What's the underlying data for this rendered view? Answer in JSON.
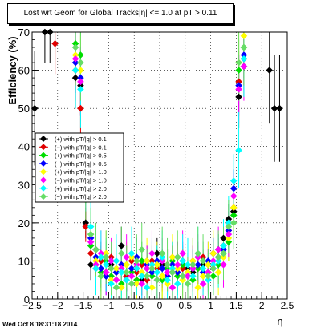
{
  "chart_data": {
    "type": "scatter",
    "title": "Lost wrt Geom for Global Tracks|η| <= 1.0 at pT > 0.11",
    "title_overlap_fragment": "atv",
    "xlabel": "η",
    "ylabel": "Efficiency (%)",
    "xlim": [
      -2.5,
      2.5
    ],
    "ylim": [
      0,
      70
    ],
    "x_ticks": [
      "−2.5",
      "−2",
      "−1.5",
      "−1",
      "−0.5",
      "0",
      "0.5",
      "1",
      "1.5",
      "2",
      "2.5"
    ],
    "y_ticks": [
      "0",
      "10",
      "20",
      "30",
      "40",
      "50",
      "60",
      "70"
    ],
    "grid": true,
    "legend_placement": "left-center",
    "series": [
      {
        "name": "(+) with pT/|q| > 0.1",
        "color": "#000000",
        "x": [
          -2.45,
          -2.25,
          -2.15,
          -1.65,
          -1.55,
          -1.45,
          -1.35,
          -1.25,
          -1.15,
          -1.05,
          -0.95,
          -0.85,
          -0.75,
          -0.65,
          -0.55,
          -0.45,
          -0.35,
          -0.25,
          -0.15,
          -0.05,
          0.05,
          0.15,
          0.25,
          0.35,
          0.45,
          0.55,
          0.65,
          0.75,
          0.85,
          0.95,
          1.05,
          1.15,
          1.25,
          1.35,
          1.45,
          1.55,
          1.65,
          2.15,
          2.25,
          2.35
        ],
        "y": [
          50,
          70,
          70,
          58,
          56,
          20,
          9,
          13,
          11,
          6,
          9,
          7,
          14,
          6,
          11,
          8,
          5,
          10,
          7,
          12,
          9,
          6,
          7,
          11,
          9,
          8,
          7,
          11,
          9,
          7,
          12,
          13,
          16,
          21,
          23,
          53,
          61,
          60,
          50,
          50
        ],
        "err": [
          15,
          8,
          8,
          8,
          8,
          4,
          4,
          4,
          4,
          4,
          4,
          4,
          5,
          4,
          4,
          4,
          4,
          4,
          4,
          4,
          4,
          4,
          4,
          4,
          4,
          4,
          4,
          4,
          4,
          4,
          4,
          4,
          4,
          4,
          4,
          8,
          8,
          14,
          14,
          14
        ]
      },
      {
        "name": "(−) with pT/|q| > 0.1",
        "color": "#e00000",
        "x": [
          -2.05,
          -1.65,
          -1.55,
          -1.45,
          -1.35,
          -1.25,
          -1.15,
          -1.05,
          -0.95,
          -0.85,
          -0.75,
          -0.65,
          -0.55,
          -0.45,
          -0.35,
          -0.25,
          -0.15,
          -0.05,
          0.05,
          0.15,
          0.25,
          0.35,
          0.45,
          0.55,
          0.65,
          0.75,
          0.85,
          0.95,
          1.05,
          1.15,
          1.25,
          1.35,
          1.45,
          1.55,
          1.65
        ],
        "y": [
          67,
          60,
          50,
          19,
          12,
          8,
          10,
          7,
          11,
          5,
          9,
          6,
          10,
          7,
          9,
          5,
          10,
          8,
          6,
          9,
          11,
          7,
          8,
          6,
          10,
          8,
          11,
          9,
          12,
          11,
          14,
          18,
          24,
          57,
          63
        ],
        "err": [
          8,
          8,
          8,
          4,
          4,
          4,
          4,
          4,
          4,
          4,
          4,
          4,
          4,
          4,
          4,
          4,
          4,
          4,
          4,
          4,
          4,
          4,
          4,
          4,
          4,
          4,
          4,
          4,
          4,
          4,
          4,
          4,
          4,
          8,
          8
        ]
      },
      {
        "name": "(+) with pT/|q| > 0.5",
        "color": "#00dd00",
        "x": [
          -1.65,
          -1.55,
          -1.45,
          -1.35,
          -1.25,
          -1.15,
          -1.05,
          -0.95,
          -0.85,
          -0.75,
          -0.65,
          -0.55,
          -0.45,
          -0.35,
          -0.25,
          -0.15,
          -0.05,
          0.05,
          0.15,
          0.25,
          0.35,
          0.45,
          0.55,
          0.65,
          0.75,
          0.85,
          0.95,
          1.05,
          1.15,
          1.25,
          1.35,
          1.45,
          1.55,
          1.65
        ],
        "y": [
          67,
          64,
          33,
          14,
          9,
          7,
          10,
          6,
          8,
          4,
          9,
          7,
          5,
          10,
          8,
          6,
          9,
          5,
          8,
          10,
          6,
          9,
          7,
          5,
          8,
          10,
          7,
          6,
          9,
          12,
          15,
          22,
          60,
          66
        ],
        "err": [
          8,
          8,
          6,
          5,
          5,
          5,
          5,
          5,
          5,
          5,
          5,
          5,
          5,
          5,
          5,
          5,
          5,
          5,
          5,
          5,
          5,
          5,
          5,
          5,
          5,
          5,
          5,
          5,
          5,
          5,
          5,
          5,
          8,
          8
        ]
      },
      {
        "name": "(−) with pT/|q| > 0.5",
        "color": "#0000ff",
        "x": [
          -1.65,
          -1.55,
          -1.45,
          -1.35,
          -1.25,
          -1.15,
          -1.05,
          -0.95,
          -0.85,
          -0.75,
          -0.65,
          -0.55,
          -0.45,
          -0.35,
          -0.25,
          -0.15,
          -0.05,
          0.05,
          0.15,
          0.25,
          0.35,
          0.45,
          0.55,
          0.65,
          0.75,
          0.85,
          0.95,
          1.05,
          1.15,
          1.25,
          1.35,
          1.45,
          1.55,
          1.65
        ],
        "y": [
          62,
          58,
          36,
          16,
          11,
          8,
          6,
          10,
          7,
          9,
          5,
          8,
          11,
          6,
          9,
          7,
          10,
          8,
          6,
          9,
          7,
          10,
          6,
          8,
          9,
          7,
          10,
          8,
          11,
          13,
          18,
          29,
          56,
          64
        ],
        "err": [
          8,
          8,
          6,
          5,
          5,
          5,
          5,
          5,
          5,
          5,
          5,
          5,
          5,
          5,
          5,
          5,
          5,
          5,
          5,
          5,
          5,
          5,
          5,
          5,
          5,
          5,
          5,
          5,
          5,
          5,
          5,
          5,
          8,
          8
        ]
      },
      {
        "name": "(+) with pT/|q| > 1.0",
        "color": "#ffff00",
        "x": [
          -1.65,
          -1.55,
          -1.45,
          -1.35,
          -1.25,
          -1.15,
          -1.05,
          -0.95,
          -0.85,
          -0.75,
          -0.65,
          -0.55,
          -0.45,
          -0.35,
          -0.25,
          -0.15,
          -0.05,
          0.05,
          0.15,
          0.25,
          0.35,
          0.45,
          0.55,
          0.65,
          0.75,
          0.85,
          0.95,
          1.05,
          1.15,
          1.25,
          1.35,
          1.45,
          1.55,
          1.65
        ],
        "y": [
          64,
          60,
          35,
          17,
          10,
          6,
          12,
          5,
          8,
          3,
          9,
          11,
          4,
          7,
          10,
          3,
          9,
          6,
          4,
          11,
          8,
          5,
          7,
          10,
          3,
          6,
          9,
          12,
          7,
          11,
          16,
          24,
          62,
          69
        ],
        "err": [
          9,
          9,
          7,
          6,
          6,
          6,
          6,
          6,
          6,
          6,
          6,
          6,
          6,
          6,
          6,
          6,
          6,
          6,
          6,
          6,
          6,
          6,
          6,
          6,
          6,
          6,
          6,
          6,
          6,
          6,
          6,
          6,
          9,
          9
        ]
      },
      {
        "name": "(−) with pT/|q| > 1.0",
        "color": "#ff00ff",
        "x": [
          -1.65,
          -1.55,
          -1.45,
          -1.35,
          -1.25,
          -1.15,
          -1.05,
          -0.95,
          -0.85,
          -0.75,
          -0.65,
          -0.55,
          -0.45,
          -0.35,
          -0.25,
          -0.15,
          -0.05,
          0.05,
          0.15,
          0.25,
          0.35,
          0.45,
          0.55,
          0.65,
          0.75,
          0.85,
          0.95,
          1.05,
          1.15,
          1.25,
          1.35,
          1.45,
          1.55,
          1.65
        ],
        "y": [
          63,
          57,
          30,
          15,
          9,
          12,
          7,
          10,
          5,
          8,
          11,
          6,
          9,
          4,
          8,
          12,
          5,
          10,
          7,
          3,
          9,
          12,
          6,
          8,
          11,
          4,
          7,
          10,
          13,
          9,
          17,
          27,
          55,
          61
        ],
        "err": [
          9,
          9,
          7,
          6,
          6,
          6,
          6,
          6,
          6,
          6,
          6,
          6,
          6,
          6,
          6,
          6,
          6,
          6,
          6,
          6,
          6,
          6,
          6,
          6,
          6,
          6,
          6,
          6,
          6,
          6,
          6,
          6,
          9,
          9
        ]
      },
      {
        "name": "(+) with pT/|q| > 2.0",
        "color": "#00ffff",
        "x": [
          -1.65,
          -1.55,
          -1.45,
          -1.35,
          -1.25,
          -1.15,
          -1.05,
          -0.95,
          -0.85,
          -0.75,
          -0.65,
          -0.55,
          -0.45,
          -0.35,
          -0.25,
          -0.15,
          -0.05,
          0.05,
          0.15,
          0.25,
          0.35,
          0.45,
          0.55,
          0.65,
          0.75,
          0.85,
          0.95,
          1.05,
          1.15,
          1.25,
          1.35,
          1.45,
          1.55,
          1.65
        ],
        "y": [
          60,
          55,
          31,
          19,
          8,
          11,
          9,
          4,
          10,
          7,
          5,
          12,
          8,
          6,
          3,
          9,
          7,
          11,
          5,
          8,
          4,
          10,
          9,
          6,
          12,
          8,
          5,
          9,
          10,
          14,
          20,
          31,
          39,
          63
        ],
        "err": [
          10,
          10,
          8,
          7,
          7,
          7,
          7,
          7,
          7,
          7,
          7,
          7,
          7,
          7,
          7,
          7,
          7,
          7,
          7,
          7,
          7,
          7,
          7,
          7,
          7,
          7,
          7,
          7,
          7,
          7,
          7,
          7,
          10,
          10
        ]
      },
      {
        "name": "(−) with pT/|q| > 2.0",
        "color": "#66dd66",
        "x": [
          -1.65,
          -1.55,
          -1.45,
          -1.35,
          -1.25,
          -1.15,
          -1.05,
          -0.95,
          -0.85,
          -0.75,
          -0.65,
          -0.55,
          -0.45,
          -0.35,
          -0.25,
          -0.15,
          -0.05,
          0.05,
          0.15,
          0.25,
          0.35,
          0.45,
          0.55,
          0.65,
          0.75,
          0.85,
          0.95,
          1.05,
          1.15,
          1.25,
          1.35,
          1.45,
          1.55,
          1.65
        ],
        "y": [
          66,
          62,
          26,
          17,
          13,
          6,
          11,
          8,
          3,
          12,
          7,
          4,
          10,
          13,
          6,
          8,
          5,
          12,
          9,
          7,
          11,
          6,
          4,
          9,
          12,
          10,
          6,
          8,
          11,
          12,
          19,
          20,
          62,
          66
        ],
        "err": [
          10,
          10,
          8,
          7,
          7,
          7,
          7,
          7,
          7,
          7,
          7,
          7,
          7,
          7,
          7,
          7,
          7,
          7,
          7,
          7,
          7,
          7,
          7,
          7,
          7,
          7,
          7,
          7,
          7,
          7,
          7,
          7,
          10,
          10
        ]
      }
    ]
  },
  "timestamp": "Wed Oct  8 18:31:18 2014"
}
